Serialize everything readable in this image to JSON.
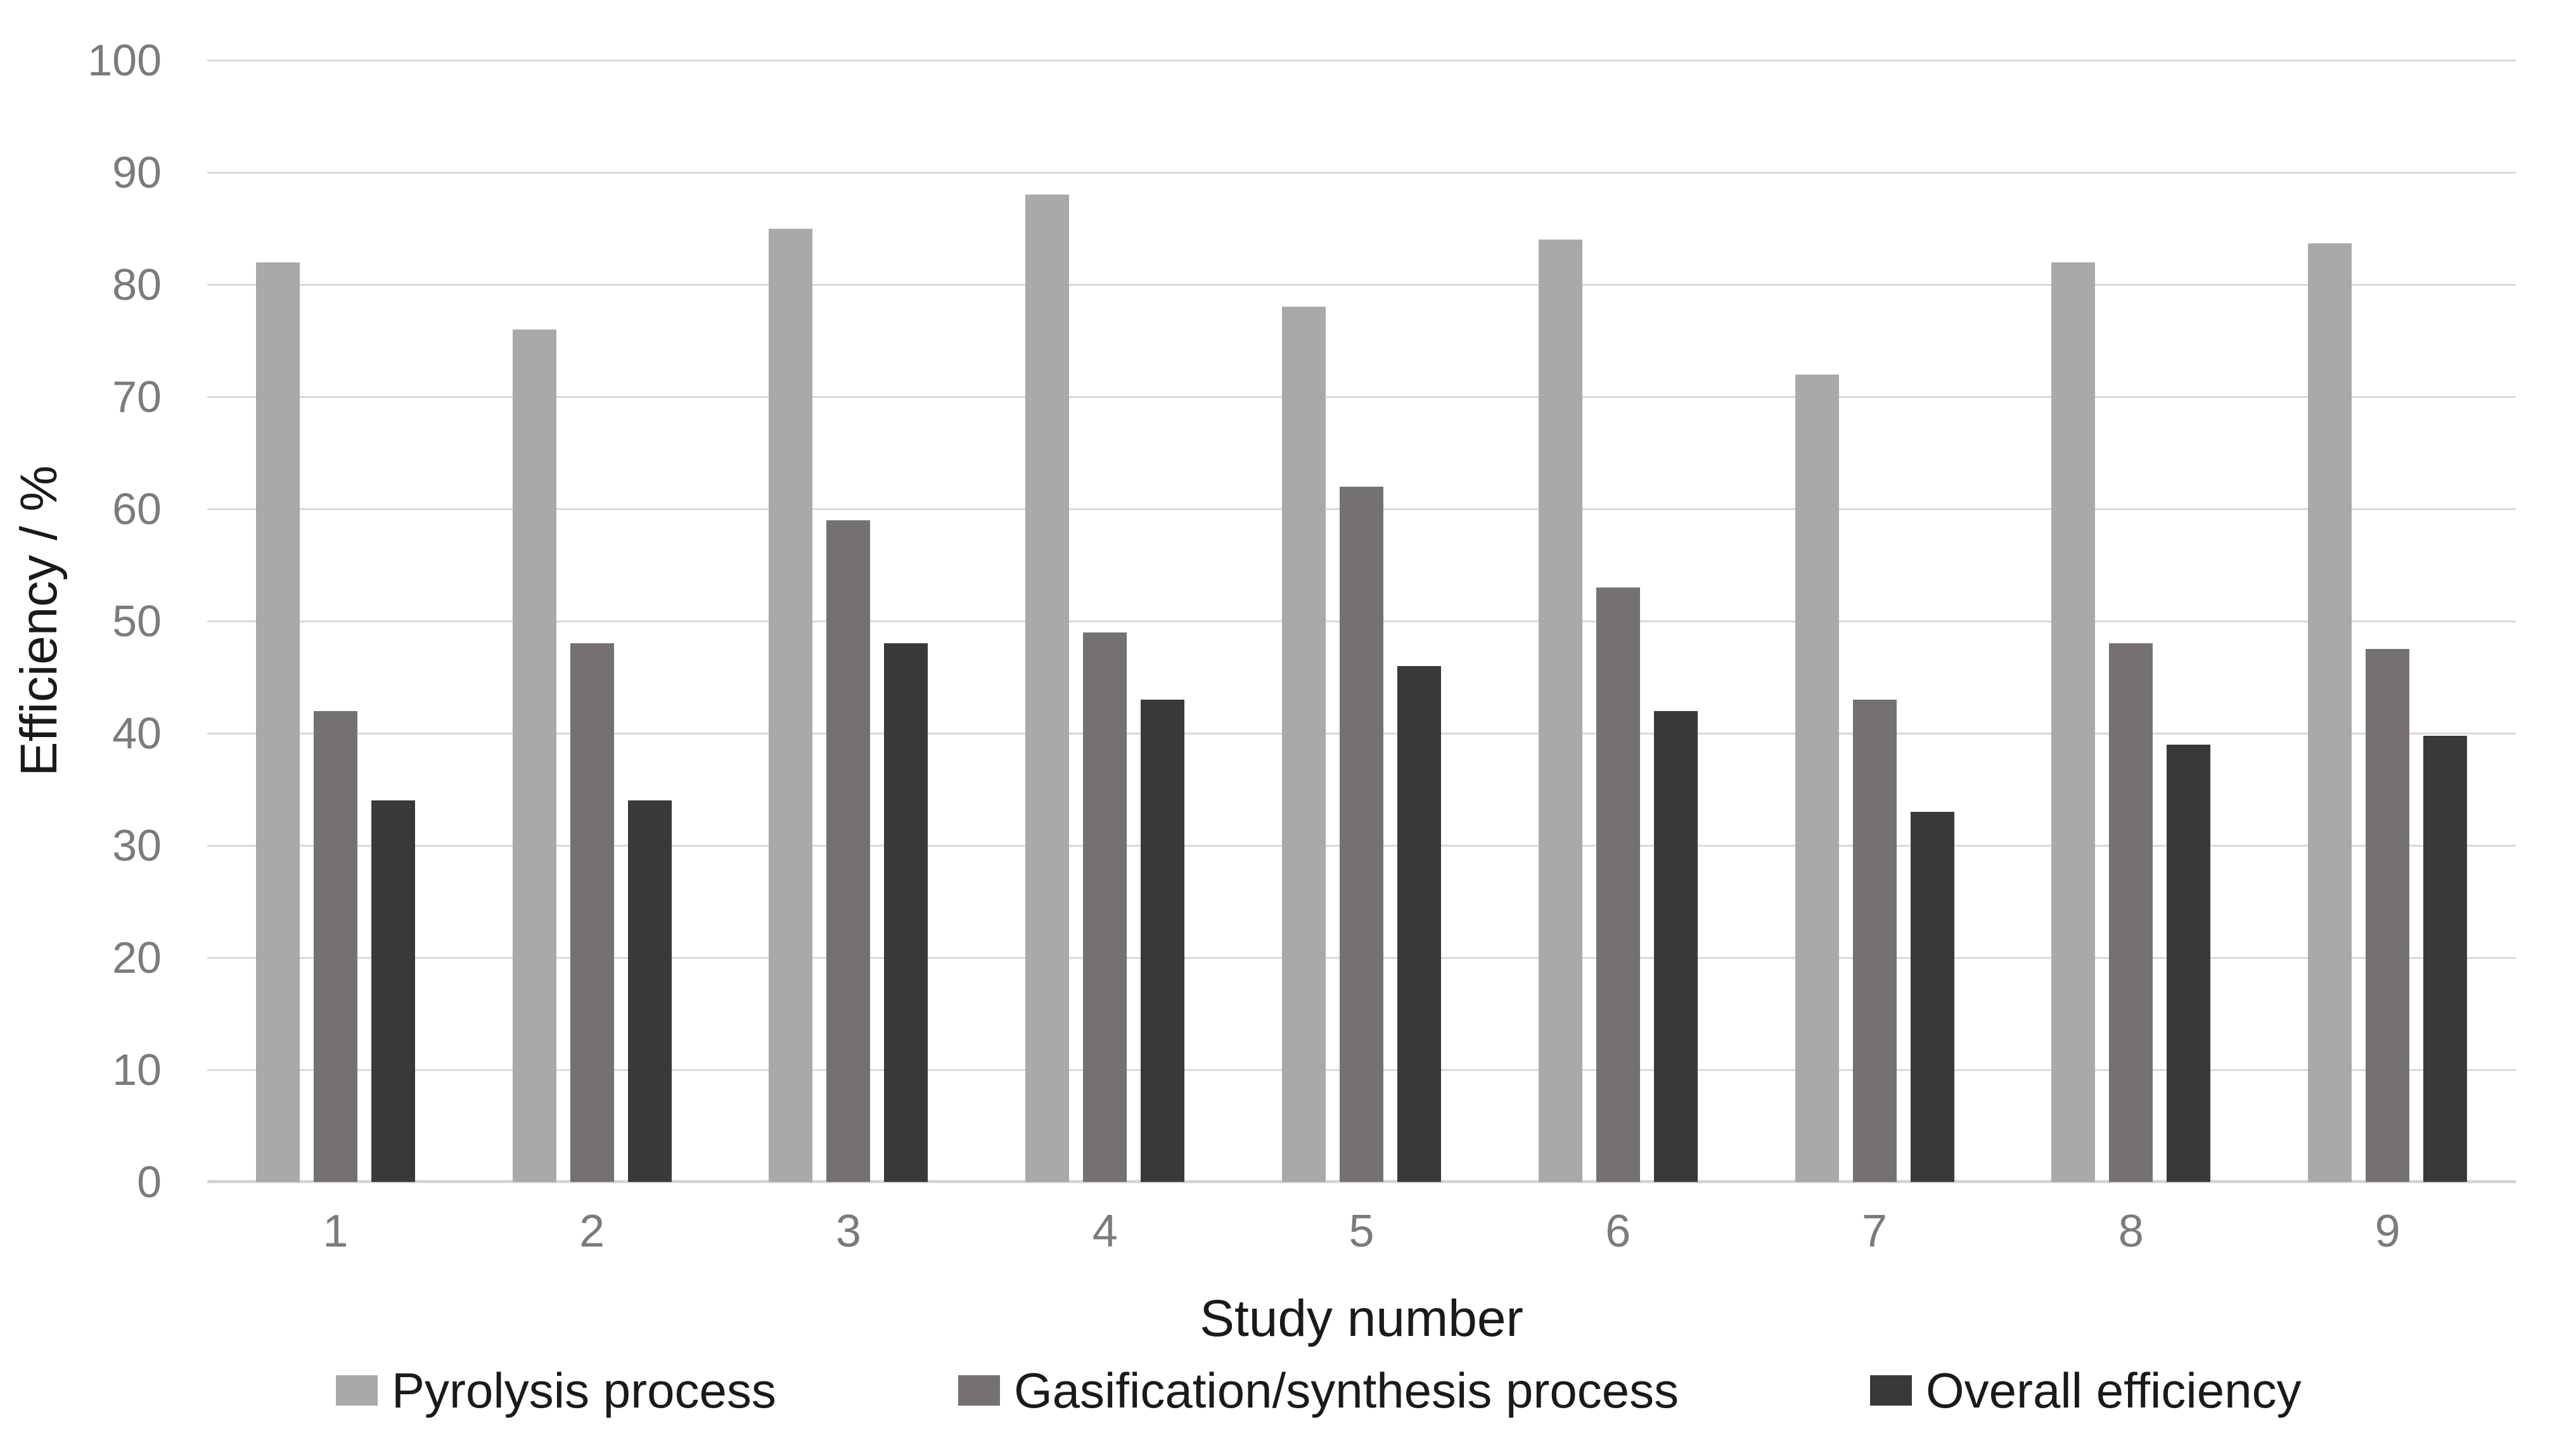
{
  "chart_data": {
    "type": "bar",
    "title": "",
    "categories": [
      "1",
      "2",
      "3",
      "4",
      "5",
      "6",
      "7",
      "8",
      "9"
    ],
    "series": [
      {
        "name": "Pyrolysis process",
        "color": "#A9A9A9",
        "values": [
          82,
          76,
          85,
          88,
          78,
          84,
          72,
          82,
          83.7
        ]
      },
      {
        "name": "Gasification/synthesis process",
        "color": "#767171",
        "values": [
          42,
          48,
          59,
          49,
          62,
          53,
          43,
          48,
          47.5
        ]
      },
      {
        "name": "Overall efficiency",
        "color": "#3B3838",
        "values": [
          34,
          34,
          48,
          43,
          46,
          42,
          33,
          39,
          39.8
        ]
      }
    ],
    "xlabel": "Study number",
    "ylabel": "Efficiency / %",
    "ylim": [
      0,
      100
    ],
    "ytick_step": 10,
    "ytick_labels": [
      "0",
      "10",
      "20",
      "30",
      "40",
      "50",
      "60",
      "70",
      "80",
      "90",
      "100"
    ],
    "grid": true,
    "legend_position": "bottom"
  },
  "style_colors": {
    "gridline": "#D9D9D9",
    "axis_baseline": "#D5D5D5",
    "tick_label": "#7B7B7B",
    "title_text": "#1A1A1A",
    "background": "#FFFFFF"
  }
}
